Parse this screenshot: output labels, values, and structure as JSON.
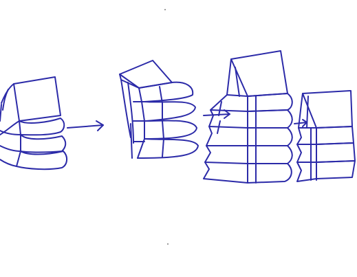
{
  "sketch": {
    "ink_color": "#2b2aa8",
    "paper_color": "#ffffff",
    "icons": {
      "stack_1": "folded-layer-stack-icon",
      "arrow_1": "right-arrow-icon",
      "stack_2": "folded-layer-stack-icon",
      "arrow_2": "right-arrow-icon",
      "stack_3": "folded-layer-stack-icon",
      "arrow_3": "right-arrow-icon",
      "stack_4": "folded-layer-stack-icon"
    }
  }
}
